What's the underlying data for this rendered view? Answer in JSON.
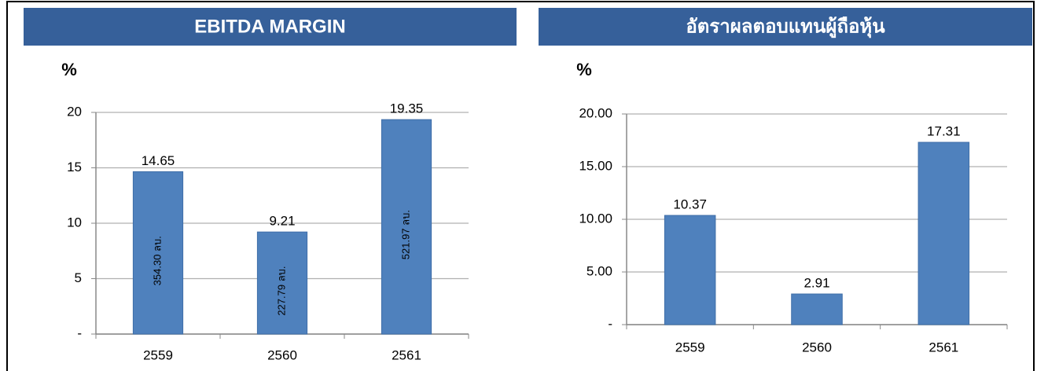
{
  "chart_data": [
    {
      "type": "bar",
      "title": "EBITDA MARGIN",
      "y_label": "%",
      "categories": [
        "2559",
        "2560",
        "2561"
      ],
      "values": [
        14.65,
        9.21,
        19.35
      ],
      "bar_annotations": [
        "354.30 ลบ.",
        "227.79 ลบ.",
        "521.97 ลบ."
      ],
      "color": "#4f81bd",
      "ylim": [
        0,
        20
      ],
      "yticks": [
        {
          "value": 0,
          "label": "-"
        },
        5,
        10,
        15,
        20
      ],
      "grid": true
    },
    {
      "type": "bar",
      "title": "อัตราผลตอบแทนผู้ถือหุ้น",
      "y_label": "%",
      "categories": [
        "2559",
        "2560",
        "2561"
      ],
      "values": [
        10.37,
        2.91,
        17.31
      ],
      "color": "#4f81bd",
      "ylim": [
        0,
        20
      ],
      "yticks": [
        {
          "value": 0,
          "label": "-"
        },
        {
          "value": 5,
          "label": "5.00"
        },
        {
          "value": 10,
          "label": "10.00"
        },
        {
          "value": 15,
          "label": "15.00"
        },
        {
          "value": 20,
          "label": "20.00"
        }
      ],
      "grid": true
    }
  ]
}
